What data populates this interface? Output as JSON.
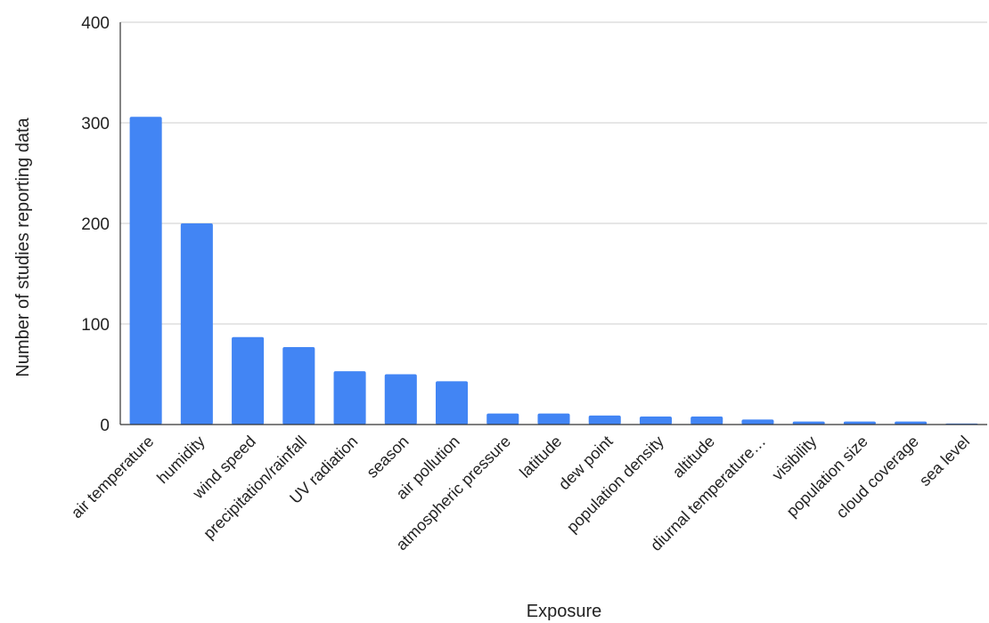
{
  "chart_data": {
    "type": "bar",
    "title": "",
    "xlabel": "Exposure",
    "ylabel": "Number of studies reporting data",
    "ylim": [
      0,
      400
    ],
    "yticks": [
      0,
      100,
      200,
      300,
      400
    ],
    "grid": true,
    "legend": "none",
    "bar_color": "#4285f4",
    "categories": [
      "air temperature",
      "humidity",
      "wind speed",
      "precipitation/rainfall",
      "UV radiation",
      "season",
      "air pollution",
      "atmospheric pressure",
      "latitude",
      "dew point",
      "population density",
      "altitude",
      "diurnal temperature…",
      "visibility",
      "population size",
      "cloud coverage",
      "sea level"
    ],
    "values": [
      306,
      200,
      87,
      77,
      53,
      50,
      43,
      11,
      11,
      9,
      8,
      8,
      5,
      3,
      3,
      3,
      1
    ]
  }
}
